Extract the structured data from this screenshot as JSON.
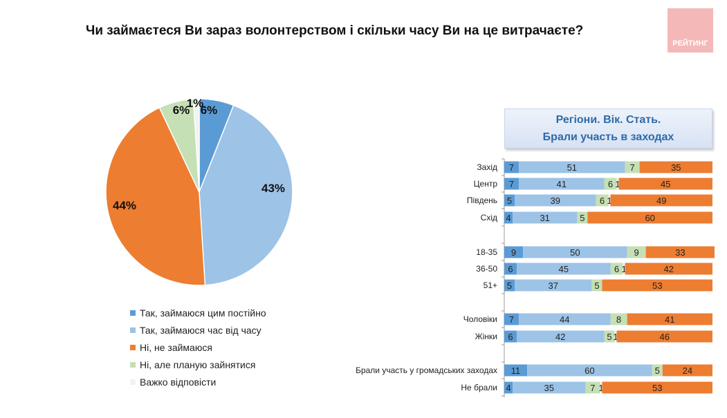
{
  "title": "Чи займаєтеся Ви зараз волонтерством і скільки часу Ви на це витрачаєте?",
  "logo": "РЕЙТИНГ",
  "panel": {
    "line1": "Регіони. Вік. Стать.",
    "line2": "Брали участь в заходах"
  },
  "colors": [
    "#5b9bd5",
    "#9dc3e6",
    "#ed7d31",
    "#c5e0b4",
    "#f2f2f2"
  ],
  "chart_data": [
    {
      "type": "pie",
      "series": [
        "Так, займаюся цим постійно",
        "Так, займаюся час від часу",
        "Ні, не займаюся",
        "Ні, але планую зайнятися",
        "Важко відповісти"
      ],
      "values": [
        6,
        43,
        44,
        6,
        1
      ],
      "labels": [
        "6%",
        "43%",
        "44%",
        "6%",
        "1%"
      ],
      "legend": "bottom"
    },
    {
      "type": "bar",
      "stacked": true,
      "orientation": "horizontal",
      "xlim": [
        0,
        100
      ],
      "categories": [
        "Захід",
        "Центр",
        "Південь",
        "Схід",
        "18-35",
        "36-50",
        "51+",
        "Чоловіки",
        "Жінки",
        "Брали участь у громадських заходах",
        "Не брали"
      ],
      "groups": [
        [
          0,
          1,
          2,
          3
        ],
        [
          4,
          5,
          6
        ],
        [
          7,
          8
        ],
        [
          9,
          10
        ]
      ],
      "series": [
        {
          "name": "Так, займаюся цим постійно",
          "values": [
            7,
            7,
            5,
            4,
            9,
            6,
            5,
            7,
            6,
            11,
            4
          ]
        },
        {
          "name": "Так, займаюся час від часу",
          "values": [
            51,
            41,
            39,
            31,
            50,
            45,
            37,
            44,
            42,
            60,
            35
          ]
        },
        {
          "name": "Ні, але планую зайнятися",
          "values": [
            7,
            6,
            6,
            5,
            9,
            6,
            5,
            8,
            5,
            5,
            7
          ]
        },
        {
          "name": "Важко відповісти",
          "values": [
            0,
            1,
            1,
            0,
            0,
            1,
            0,
            0,
            1,
            0,
            1
          ]
        },
        {
          "name": "Ні, не займаюся",
          "values": [
            35,
            45,
            49,
            60,
            33,
            42,
            53,
            41,
            46,
            24,
            53
          ]
        }
      ]
    }
  ]
}
